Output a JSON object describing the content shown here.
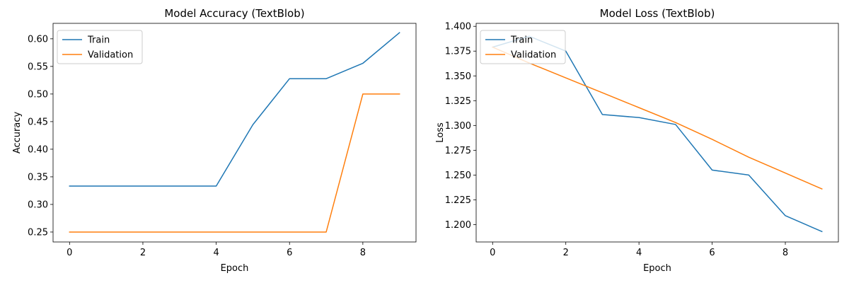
{
  "colors": {
    "train": "#1f77b4",
    "validation": "#ff7f0e"
  },
  "chart_data": [
    {
      "type": "line",
      "title": "Model Accuracy (TextBlob)",
      "xlabel": "Epoch",
      "ylabel": "Accuracy",
      "x": [
        0,
        1,
        2,
        3,
        4,
        5,
        6,
        7,
        8,
        9
      ],
      "xlim": [
        -0.45,
        9.45
      ],
      "ylim": [
        0.232,
        0.628
      ],
      "xticks": [
        0,
        2,
        4,
        6,
        8
      ],
      "yticks": [
        0.25,
        0.3,
        0.35,
        0.4,
        0.45,
        0.5,
        0.55,
        0.6
      ],
      "ytick_labels": [
        "0.25",
        "0.30",
        "0.35",
        "0.40",
        "0.45",
        "0.50",
        "0.55",
        "0.60"
      ],
      "legend_position": "upper-left",
      "grid": false,
      "series": [
        {
          "name": "Train",
          "values": [
            0.3333,
            0.3333,
            0.3333,
            0.3333,
            0.3333,
            0.4444,
            0.5278,
            0.5278,
            0.5556,
            0.6111
          ]
        },
        {
          "name": "Validation",
          "values": [
            0.25,
            0.25,
            0.25,
            0.25,
            0.25,
            0.25,
            0.25,
            0.25,
            0.5,
            0.5
          ]
        }
      ]
    },
    {
      "type": "line",
      "title": "Model Loss (TextBlob)",
      "xlabel": "Epoch",
      "ylabel": "Loss",
      "x": [
        0,
        1,
        2,
        3,
        4,
        5,
        6,
        7,
        8,
        9
      ],
      "xlim": [
        -0.45,
        9.45
      ],
      "ylim": [
        1.1825,
        1.403
      ],
      "xticks": [
        0,
        2,
        4,
        6,
        8
      ],
      "yticks": [
        1.2,
        1.225,
        1.25,
        1.275,
        1.3,
        1.325,
        1.35,
        1.375,
        1.4
      ],
      "ytick_labels": [
        "1.200",
        "1.225",
        "1.250",
        "1.275",
        "1.300",
        "1.325",
        "1.350",
        "1.375",
        "1.400"
      ],
      "legend_position": "upper-left",
      "grid": false,
      "series": [
        {
          "name": "Train",
          "values": [
            1.379,
            1.39,
            1.375,
            1.311,
            1.308,
            1.301,
            1.255,
            1.25,
            1.209,
            1.193
          ]
        },
        {
          "name": "Validation",
          "values": [
            1.379,
            1.363,
            1.348,
            1.333,
            1.318,
            1.303,
            1.286,
            1.268,
            1.252,
            1.236
          ]
        }
      ]
    }
  ]
}
